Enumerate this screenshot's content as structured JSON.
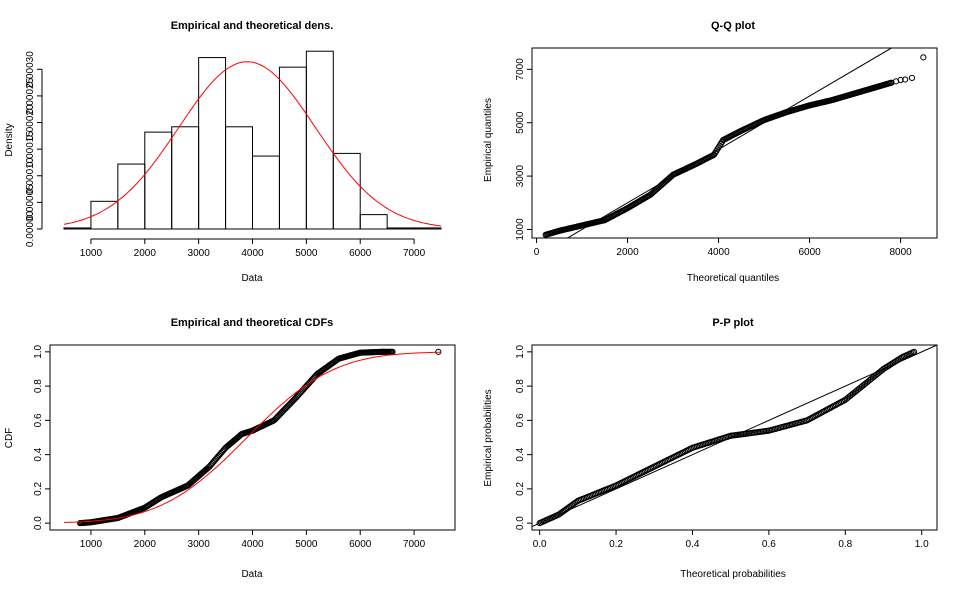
{
  "chart_data": [
    {
      "id": "density",
      "type": "histogram",
      "title": "Empirical and theoretical dens.",
      "xlabel": "Data",
      "ylabel": "Density",
      "xlim": [
        500,
        7500
      ],
      "ylim": [
        0,
        0.00034
      ],
      "xticks": [
        1000,
        2000,
        3000,
        4000,
        5000,
        6000,
        7000
      ],
      "yticks": [
        "0.00000",
        "0.00005",
        "0.00010",
        "0.00015",
        "0.00020",
        "0.00025",
        "0.00030"
      ],
      "bins": [
        {
          "from": 500,
          "to": 1000,
          "density": 2e-06
        },
        {
          "from": 1000,
          "to": 1500,
          "density": 5.2e-05
        },
        {
          "from": 1500,
          "to": 2000,
          "density": 0.000122
        },
        {
          "from": 2000,
          "to": 2500,
          "density": 0.000182
        },
        {
          "from": 2500,
          "to": 3000,
          "density": 0.000192
        },
        {
          "from": 3000,
          "to": 3500,
          "density": 0.000322
        },
        {
          "from": 3500,
          "to": 4000,
          "density": 0.000192
        },
        {
          "from": 4000,
          "to": 4500,
          "density": 0.000137
        },
        {
          "from": 4500,
          "to": 5000,
          "density": 0.000304
        },
        {
          "from": 5000,
          "to": 5500,
          "density": 0.000334
        },
        {
          "from": 5500,
          "to": 6000,
          "density": 0.000142
        },
        {
          "from": 6000,
          "to": 6500,
          "density": 2.7e-05
        },
        {
          "from": 6500,
          "to": 7000,
          "density": 2e-06
        },
        {
          "from": 7000,
          "to": 7500,
          "density": 2e-06
        }
      ],
      "fit_curve": {
        "mean": 3900,
        "sd": 1270,
        "color": "#ff0000"
      }
    },
    {
      "id": "qq",
      "type": "scatter",
      "title": "Q-Q plot",
      "xlabel": "Theoretical quantiles",
      "ylabel": "Empirical quantiles",
      "xlim": [
        -100,
        8800
      ],
      "ylim": [
        680,
        7800
      ],
      "xticks": [
        0,
        2000,
        4000,
        6000,
        8000
      ],
      "yticks": [
        1000,
        3000,
        5000,
        7000
      ],
      "curve": [
        [
          200,
          800
        ],
        [
          500,
          950
        ],
        [
          1000,
          1150
        ],
        [
          1500,
          1350
        ],
        [
          2000,
          1800
        ],
        [
          2500,
          2300
        ],
        [
          3000,
          3050
        ],
        [
          3500,
          3450
        ],
        [
          3900,
          3800
        ],
        [
          4100,
          4350
        ],
        [
          4500,
          4700
        ],
        [
          5000,
          5100
        ],
        [
          5500,
          5400
        ],
        [
          6000,
          5650
        ],
        [
          6500,
          5850
        ],
        [
          7000,
          6100
        ],
        [
          7500,
          6350
        ],
        [
          7800,
          6500
        ]
      ],
      "outliers": [
        [
          7900,
          6550
        ],
        [
          8000,
          6600
        ],
        [
          8100,
          6620
        ],
        [
          8250,
          6680
        ],
        [
          8500,
          7450
        ]
      ],
      "reference_line": [
        [
          500,
          500
        ],
        [
          7900,
          7900
        ]
      ]
    },
    {
      "id": "cdf",
      "type": "scatter",
      "title": "Empirical and theoretical CDFs",
      "xlabel": "Data",
      "ylabel": "CDF",
      "xlim": [
        500,
        7500
      ],
      "ylim": [
        0,
        1
      ],
      "xticks": [
        1000,
        2000,
        3000,
        4000,
        5000,
        6000,
        7000
      ],
      "yticks": [
        "0.0",
        "0.2",
        "0.4",
        "0.6",
        "0.8",
        "1.0"
      ],
      "empirical": [
        [
          800,
          0
        ],
        [
          1000,
          0.005
        ],
        [
          1500,
          0.03
        ],
        [
          2000,
          0.09
        ],
        [
          2300,
          0.15
        ],
        [
          2800,
          0.22
        ],
        [
          3200,
          0.33
        ],
        [
          3500,
          0.44
        ],
        [
          3800,
          0.52
        ],
        [
          4000,
          0.54
        ],
        [
          4400,
          0.6
        ],
        [
          4800,
          0.73
        ],
        [
          5200,
          0.87
        ],
        [
          5600,
          0.96
        ],
        [
          6000,
          0.995
        ],
        [
          6400,
          1.0
        ],
        [
          6600,
          1.0
        ]
      ],
      "empirical_outlier": [
        7450,
        1.0
      ],
      "fit_curve": {
        "mean": 3900,
        "sd": 1270,
        "color": "#ff0000"
      }
    },
    {
      "id": "pp",
      "type": "scatter",
      "title": "P-P plot",
      "xlabel": "Theoretical probabilities",
      "ylabel": "Empirical probabilities",
      "xlim": [
        -0.02,
        1.04
      ],
      "ylim": [
        -0.04,
        1.04
      ],
      "xticks": [
        "0.0",
        "0.2",
        "0.4",
        "0.6",
        "0.8",
        "1.0"
      ],
      "yticks": [
        "0.0",
        "0.2",
        "0.4",
        "0.6",
        "0.8",
        "1.0"
      ],
      "curve": [
        [
          0,
          0
        ],
        [
          0.05,
          0.05
        ],
        [
          0.1,
          0.13
        ],
        [
          0.2,
          0.22
        ],
        [
          0.3,
          0.33
        ],
        [
          0.4,
          0.44
        ],
        [
          0.5,
          0.51
        ],
        [
          0.6,
          0.54
        ],
        [
          0.7,
          0.6
        ],
        [
          0.8,
          0.72
        ],
        [
          0.9,
          0.9
        ],
        [
          0.95,
          0.97
        ],
        [
          0.98,
          1.0
        ]
      ],
      "reference_line": [
        [
          -0.02,
          -0.02
        ],
        [
          1.04,
          1.04
        ]
      ]
    }
  ]
}
